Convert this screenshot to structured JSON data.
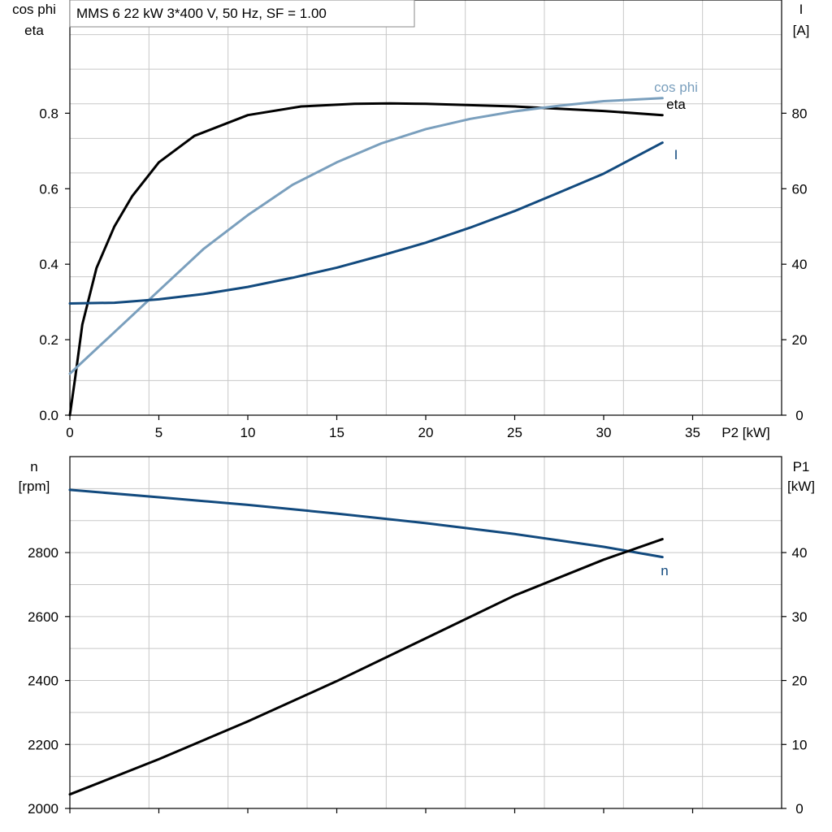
{
  "colors": {
    "eta": "#000000",
    "cosphi": "#7a9fbd",
    "current": "#124a7e",
    "speed": "#124a7e",
    "p1": "#000000",
    "grid": "#c8c8c8"
  },
  "chart_data": [
    {
      "type": "line",
      "title": "MMS 6   22 kW   3*400 V, 50 Hz, SF = 1.00",
      "xlabel": "P2 [kW]",
      "xlim": [
        0,
        40
      ],
      "x_ticks": [
        0,
        5,
        10,
        15,
        20,
        25,
        30,
        35
      ],
      "x_tick_labels": [
        "0",
        "5",
        "10",
        "15",
        "20",
        "25",
        "30",
        "35"
      ],
      "ylabel_left": [
        "cos phi",
        "eta"
      ],
      "ylim_left": [
        0,
        1.1
      ],
      "y_ticks_left": [
        0,
        0.2,
        0.4,
        0.6,
        0.8
      ],
      "y_tick_labels_left": [
        "0.0",
        "0.2",
        "0.4",
        "0.6",
        "0.8"
      ],
      "ylabel_right": [
        "I",
        "[A]"
      ],
      "ylim_right": [
        0,
        110
      ],
      "y_ticks_right": [
        0,
        20,
        40,
        60,
        80
      ],
      "y_tick_labels_right": [
        "0",
        "20",
        "40",
        "60",
        "80"
      ],
      "grid": true,
      "series": [
        {
          "name": "eta",
          "axis": "left",
          "color_key": "eta",
          "x": [
            0,
            0.3,
            0.7,
            1.5,
            2.5,
            3.5,
            5,
            7,
            10,
            13,
            16,
            18,
            20,
            25,
            30,
            33.3
          ],
          "y": [
            0,
            0.1,
            0.24,
            0.39,
            0.5,
            0.58,
            0.67,
            0.74,
            0.795,
            0.818,
            0.825,
            0.826,
            0.825,
            0.818,
            0.806,
            0.795
          ]
        },
        {
          "name": "cos phi",
          "axis": "left",
          "color_key": "cosphi",
          "x": [
            0,
            2.5,
            5,
            7.5,
            10,
            12.5,
            15,
            17.5,
            20,
            22.5,
            25,
            27.5,
            30,
            33.3
          ],
          "y": [
            0.11,
            0.22,
            0.33,
            0.44,
            0.53,
            0.61,
            0.67,
            0.72,
            0.758,
            0.785,
            0.805,
            0.82,
            0.832,
            0.84
          ]
        },
        {
          "name": "I",
          "axis": "right",
          "color_key": "current",
          "x": [
            0,
            2.5,
            5,
            7.5,
            10,
            12.5,
            15,
            17.5,
            20,
            22.5,
            25,
            27.5,
            30,
            33.3
          ],
          "y": [
            29.6,
            29.8,
            30.7,
            32.1,
            34,
            36.4,
            39.1,
            42.3,
            45.7,
            49.7,
            54.1,
            59,
            64,
            72.2
          ]
        }
      ]
    },
    {
      "type": "line",
      "xlim": [
        0,
        40
      ],
      "x_ticks": [
        0,
        5,
        10,
        15,
        20,
        25,
        30,
        35
      ],
      "ylabel_left": [
        "n",
        "[rpm]"
      ],
      "ylim_left": [
        2000,
        3100
      ],
      "y_ticks_left": [
        2000,
        2200,
        2400,
        2600,
        2800
      ],
      "y_tick_labels_left": [
        "2000",
        "2200",
        "2400",
        "2600",
        "2800"
      ],
      "ylabel_right": [
        "P1",
        "[kW]"
      ],
      "ylim_right": [
        0,
        55
      ],
      "y_ticks_right": [
        0,
        10,
        20,
        30,
        40
      ],
      "y_tick_labels_right": [
        "0",
        "10",
        "20",
        "30",
        "40"
      ],
      "grid": true,
      "series": [
        {
          "name": "n",
          "axis": "left",
          "color_key": "speed",
          "x": [
            0,
            5,
            10,
            15,
            20,
            25,
            30,
            33.3
          ],
          "y": [
            2996,
            2973,
            2949,
            2922,
            2892,
            2858,
            2818,
            2786
          ]
        },
        {
          "name": "",
          "axis": "right",
          "color_key": "p1",
          "x": [
            0,
            5,
            10,
            15,
            20,
            25,
            30,
            33.3
          ],
          "y": [
            2.2,
            7.7,
            13.6,
            19.9,
            26.6,
            33.3,
            38.9,
            42.1
          ]
        }
      ]
    }
  ]
}
